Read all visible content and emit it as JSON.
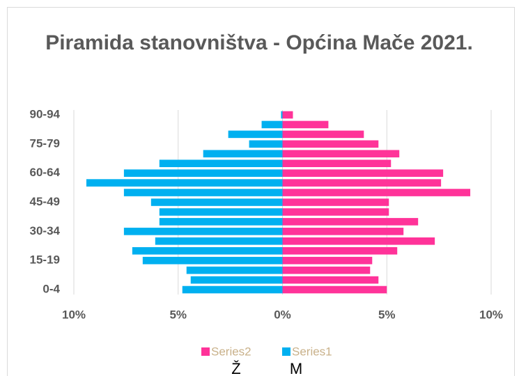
{
  "chart_data": {
    "type": "bar",
    "orientation": "horizontal",
    "stacked": true,
    "title": "Piramida stanovništva - Općina Mače 2021.",
    "categories": [
      "0-4",
      null,
      null,
      "15-19",
      null,
      null,
      "30-34",
      null,
      null,
      "45-49",
      null,
      null,
      "60-64",
      null,
      null,
      "75-79",
      null,
      null,
      "90-94"
    ],
    "series": [
      {
        "name": "Series1",
        "color": "#00b0f0",
        "values": [
          -4.8,
          -4.4,
          -4.6,
          -6.7,
          -7.2,
          -6.1,
          -7.6,
          -5.9,
          -5.9,
          -6.3,
          -7.6,
          -9.4,
          -7.6,
          -5.9,
          -3.8,
          -1.6,
          -2.6,
          -1.0,
          -0.07
        ]
      },
      {
        "name": "Series2",
        "color": "#ff3399",
        "values": [
          5.0,
          4.6,
          4.2,
          4.3,
          5.5,
          7.3,
          5.8,
          6.5,
          5.1,
          5.1,
          9.0,
          7.6,
          7.7,
          5.2,
          5.6,
          4.6,
          3.9,
          2.2,
          0.5
        ]
      }
    ],
    "xlim": [
      -10,
      10
    ],
    "xticks": [
      {
        "value": -10,
        "label": "10%"
      },
      {
        "value": -5,
        "label": "5%"
      },
      {
        "value": 0,
        "label": "0%"
      },
      {
        "value": 5,
        "label": "5%"
      },
      {
        "value": 10,
        "label": "10%"
      }
    ],
    "grid": true,
    "legend": "bottom",
    "annotations": [
      "Ž",
      "M"
    ]
  }
}
